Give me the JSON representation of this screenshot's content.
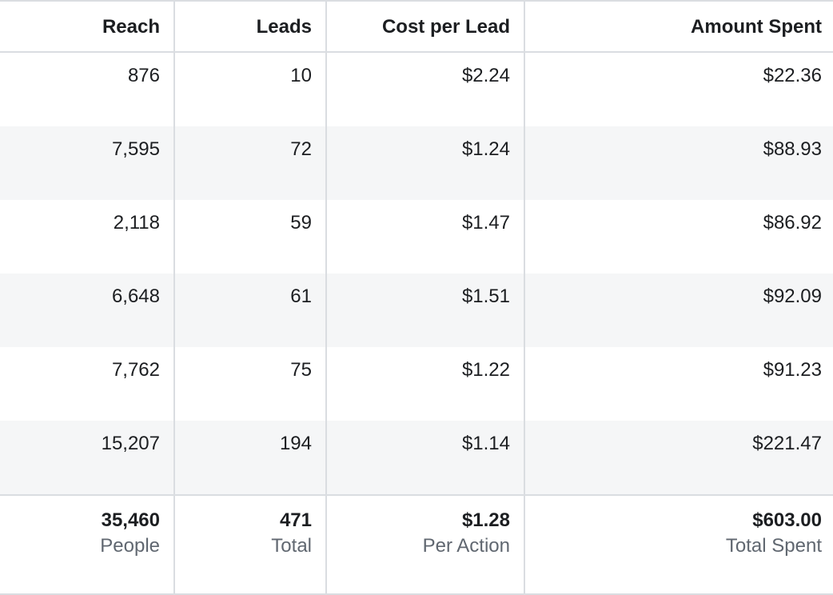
{
  "table": {
    "columns": [
      "Reach",
      "Leads",
      "Cost per Lead",
      "Amount Spent"
    ],
    "rows": [
      [
        "876",
        "10",
        "$2.24",
        "$22.36"
      ],
      [
        "7,595",
        "72",
        "$1.24",
        "$88.93"
      ],
      [
        "2,118",
        "59",
        "$1.47",
        "$86.92"
      ],
      [
        "6,648",
        "61",
        "$1.51",
        "$92.09"
      ],
      [
        "7,762",
        "75",
        "$1.22",
        "$91.23"
      ],
      [
        "15,207",
        "194",
        "$1.14",
        "$221.47"
      ]
    ],
    "totals": [
      {
        "value": "35,460",
        "caption": "People"
      },
      {
        "value": "471",
        "caption": "Total"
      },
      {
        "value": "$1.28",
        "caption": "Per Action"
      },
      {
        "value": "$603.00",
        "caption": "Total Spent"
      }
    ]
  },
  "colors": {
    "row_alt_bg": "#f5f6f7",
    "border": "#dadde1",
    "text": "#1c1e21",
    "caption": "#606770"
  }
}
